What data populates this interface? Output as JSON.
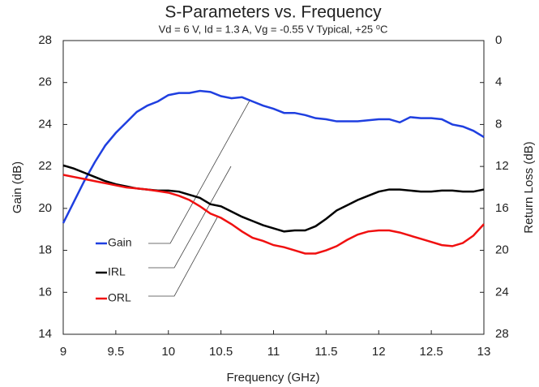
{
  "chart_data": {
    "type": "line",
    "title": "S-Parameters vs. Frequency",
    "subtitle": "Vd = 6 V, Id = 1.3 A, Vg = -0.55 V Typical, +25 ⁰C",
    "x_label": "Frequency (GHz)",
    "y_label": "Gain (dB)",
    "y2_label": "Return Loss (dB)",
    "x": [
      9,
      9.1,
      9.2,
      9.3,
      9.4,
      9.5,
      9.6,
      9.7,
      9.8,
      9.9,
      10,
      10.1,
      10.2,
      10.3,
      10.4,
      10.5,
      10.6,
      10.7,
      10.8,
      10.9,
      11,
      11.1,
      11.2,
      11.3,
      11.4,
      11.5,
      11.6,
      11.7,
      11.8,
      11.9,
      12,
      12.1,
      12.2,
      12.3,
      12.4,
      12.5,
      12.6,
      12.7,
      12.8,
      12.9,
      13
    ],
    "series": [
      {
        "name": "Gain",
        "color": "#1f3fe0",
        "axis": "y",
        "values": [
          19.3,
          20.3,
          21.3,
          22.2,
          23.0,
          23.6,
          24.1,
          24.6,
          24.9,
          25.1,
          25.4,
          25.5,
          25.5,
          25.6,
          25.55,
          25.35,
          25.25,
          25.3,
          25.1,
          24.9,
          24.75,
          24.55,
          24.55,
          24.45,
          24.3,
          24.25,
          24.15,
          24.15,
          24.15,
          24.2,
          24.25,
          24.25,
          24.1,
          24.35,
          24.3,
          24.3,
          24.25,
          24.0,
          23.9,
          23.7,
          23.4
        ]
      },
      {
        "name": "IRL",
        "color": "#000000",
        "axis": "y2",
        "values": [
          11.9,
          12.2,
          12.6,
          13.0,
          13.4,
          13.7,
          13.9,
          14.1,
          14.2,
          14.3,
          14.3,
          14.4,
          14.7,
          15.0,
          15.6,
          15.8,
          16.3,
          16.8,
          17.2,
          17.6,
          17.9,
          18.2,
          18.1,
          18.1,
          17.7,
          17.0,
          16.2,
          15.7,
          15.2,
          14.8,
          14.4,
          14.2,
          14.2,
          14.3,
          14.4,
          14.4,
          14.3,
          14.3,
          14.4,
          14.4,
          14.2
        ]
      },
      {
        "name": "ORL",
        "color": "#f01010",
        "axis": "y2",
        "values": [
          12.8,
          13.0,
          13.2,
          13.4,
          13.6,
          13.8,
          14.0,
          14.1,
          14.2,
          14.35,
          14.5,
          14.8,
          15.2,
          15.8,
          16.5,
          16.9,
          17.5,
          18.2,
          18.8,
          19.1,
          19.5,
          19.7,
          20.0,
          20.3,
          20.3,
          20.0,
          19.6,
          19.0,
          18.5,
          18.2,
          18.1,
          18.1,
          18.3,
          18.6,
          18.9,
          19.2,
          19.5,
          19.6,
          19.3,
          18.6,
          17.5
        ]
      }
    ],
    "xlim": [
      9,
      13
    ],
    "xticks": [
      9,
      9.5,
      10,
      10.5,
      11,
      11.5,
      12,
      12.5,
      13
    ],
    "ylim": [
      14,
      28
    ],
    "yticks": [
      14,
      16,
      18,
      20,
      22,
      24,
      26,
      28
    ],
    "y2lim": [
      28,
      0
    ],
    "y2ticks": [
      0,
      4,
      8,
      12,
      16,
      20,
      24,
      28
    ],
    "grid": false
  }
}
